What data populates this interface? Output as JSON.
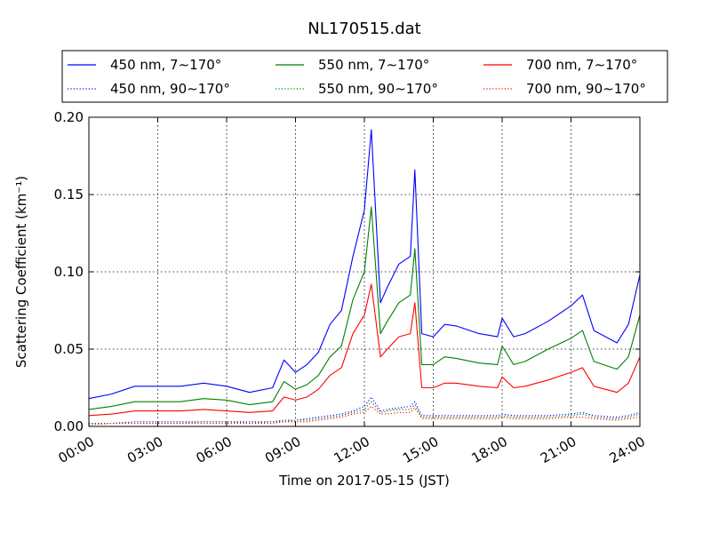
{
  "chart_data": {
    "type": "line",
    "title": "NL170515.dat",
    "xlabel": "Time on 2017-05-15 (JST)",
    "ylabel": "Scattering Coefficient (km⁻¹)",
    "x_unit": "hour",
    "xlim": [
      0,
      24
    ],
    "ylim": [
      0,
      0.2
    ],
    "x_ticks": [
      0,
      3,
      6,
      9,
      12,
      15,
      18,
      21,
      24
    ],
    "x_tick_labels": [
      "00:00",
      "03:00",
      "06:00",
      "09:00",
      "12:00",
      "15:00",
      "18:00",
      "21:00",
      "24:00"
    ],
    "y_ticks": [
      0,
      0.05,
      0.1,
      0.15,
      0.2
    ],
    "y_tick_labels": [
      "0.00",
      "0.05",
      "0.10",
      "0.15",
      "0.20"
    ],
    "grid": true,
    "legend_position": "top, above plot, 3 columns",
    "x": [
      0,
      1,
      2,
      3,
      4,
      5,
      6,
      7,
      8,
      8.5,
      9,
      9.5,
      10,
      10.5,
      11,
      11.5,
      12,
      12.3,
      12.7,
      13,
      13.5,
      14,
      14.2,
      14.5,
      15,
      15.5,
      16,
      17,
      17.8,
      18,
      18.5,
      19,
      20,
      21,
      21.5,
      22,
      23,
      23.5,
      24
    ],
    "series": [
      {
        "name": "450 nm, 7∼170°",
        "color": "#0000ff",
        "style": "solid",
        "values": [
          0.018,
          0.021,
          0.026,
          0.026,
          0.026,
          0.028,
          0.026,
          0.022,
          0.025,
          0.043,
          0.035,
          0.04,
          0.048,
          0.066,
          0.075,
          0.11,
          0.14,
          0.192,
          0.08,
          0.09,
          0.105,
          0.11,
          0.166,
          0.06,
          0.058,
          0.066,
          0.065,
          0.06,
          0.058,
          0.07,
          0.058,
          0.06,
          0.068,
          0.078,
          0.085,
          0.062,
          0.054,
          0.066,
          0.098
        ]
      },
      {
        "name": "450 nm, 90∼170°",
        "color": "#0000ff",
        "style": "dotted",
        "values": [
          0.002,
          0.002,
          0.003,
          0.003,
          0.003,
          0.003,
          0.003,
          0.003,
          0.003,
          0.004,
          0.004,
          0.005,
          0.006,
          0.007,
          0.008,
          0.01,
          0.013,
          0.019,
          0.01,
          0.011,
          0.012,
          0.013,
          0.016,
          0.007,
          0.007,
          0.007,
          0.007,
          0.007,
          0.007,
          0.008,
          0.007,
          0.007,
          0.007,
          0.008,
          0.009,
          0.007,
          0.006,
          0.007,
          0.009
        ]
      },
      {
        "name": "550 nm, 7∼170°",
        "color": "#008000",
        "style": "solid",
        "values": [
          0.011,
          0.013,
          0.016,
          0.016,
          0.016,
          0.018,
          0.017,
          0.014,
          0.016,
          0.029,
          0.024,
          0.027,
          0.033,
          0.045,
          0.052,
          0.082,
          0.1,
          0.142,
          0.06,
          0.068,
          0.08,
          0.085,
          0.115,
          0.04,
          0.04,
          0.045,
          0.044,
          0.041,
          0.04,
          0.052,
          0.04,
          0.042,
          0.05,
          0.057,
          0.062,
          0.042,
          0.037,
          0.045,
          0.072
        ]
      },
      {
        "name": "550 nm, 90∼170°",
        "color": "#008000",
        "style": "dotted",
        "values": [
          0.002,
          0.002,
          0.002,
          0.002,
          0.002,
          0.003,
          0.003,
          0.002,
          0.003,
          0.003,
          0.004,
          0.004,
          0.005,
          0.006,
          0.007,
          0.009,
          0.011,
          0.016,
          0.009,
          0.01,
          0.011,
          0.011,
          0.014,
          0.006,
          0.006,
          0.006,
          0.006,
          0.006,
          0.006,
          0.007,
          0.006,
          0.006,
          0.006,
          0.007,
          0.008,
          0.006,
          0.005,
          0.006,
          0.008
        ]
      },
      {
        "name": "700 nm, 7∼170°",
        "color": "#ff0000",
        "style": "solid",
        "values": [
          0.007,
          0.008,
          0.01,
          0.01,
          0.01,
          0.011,
          0.01,
          0.009,
          0.01,
          0.019,
          0.017,
          0.019,
          0.024,
          0.033,
          0.038,
          0.06,
          0.072,
          0.092,
          0.045,
          0.05,
          0.058,
          0.06,
          0.08,
          0.025,
          0.025,
          0.028,
          0.028,
          0.026,
          0.025,
          0.032,
          0.025,
          0.026,
          0.03,
          0.035,
          0.038,
          0.026,
          0.022,
          0.028,
          0.045
        ]
      },
      {
        "name": "700 nm, 90∼170°",
        "color": "#ff0000",
        "style": "dotted",
        "values": [
          0.001,
          0.002,
          0.002,
          0.002,
          0.002,
          0.002,
          0.002,
          0.002,
          0.002,
          0.003,
          0.003,
          0.003,
          0.004,
          0.005,
          0.006,
          0.008,
          0.009,
          0.013,
          0.008,
          0.008,
          0.009,
          0.009,
          0.012,
          0.005,
          0.005,
          0.005,
          0.005,
          0.005,
          0.005,
          0.006,
          0.005,
          0.005,
          0.005,
          0.006,
          0.006,
          0.005,
          0.004,
          0.005,
          0.006
        ]
      }
    ]
  }
}
